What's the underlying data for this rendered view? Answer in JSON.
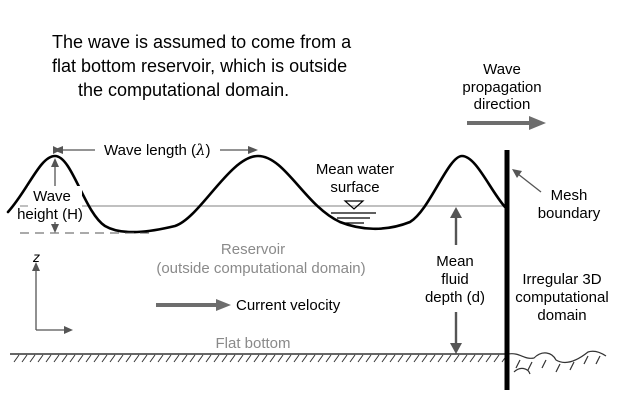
{
  "intro": {
    "lines": [
      "The wave is assumed to come from a",
      "flat bottom reservoir, which is outside",
      "the computational domain."
    ]
  },
  "propagation": {
    "lines": [
      "Wave",
      "propagation",
      "direction"
    ]
  },
  "wave_length": {
    "text": "Wave length (",
    "symbol": "λ",
    "close": ")"
  },
  "mean_water_surface": {
    "lines": [
      "Mean water",
      "surface"
    ]
  },
  "mesh_boundary": {
    "lines": [
      "Mesh",
      "boundary"
    ]
  },
  "wave_height": {
    "lines": [
      "Wave",
      "height (H)"
    ]
  },
  "reservoir": {
    "lines": [
      "Reservoir",
      "(outside computational domain)"
    ]
  },
  "mean_fluid_depth": {
    "lines": [
      "Mean",
      "fluid",
      "depth (d)"
    ]
  },
  "computational_domain": {
    "lines": [
      "Irregular 3D",
      "computational",
      "domain"
    ]
  },
  "axis": {
    "z_label": "z"
  },
  "current_velocity": {
    "label": "Current velocity"
  },
  "flat_bottom": {
    "label": "Flat bottom"
  },
  "colors": {
    "ink": "#000000",
    "grey_text": "#8a8a8a",
    "arrow_grey": "#6d6d6d",
    "line_grey": "#9a9a9a"
  }
}
